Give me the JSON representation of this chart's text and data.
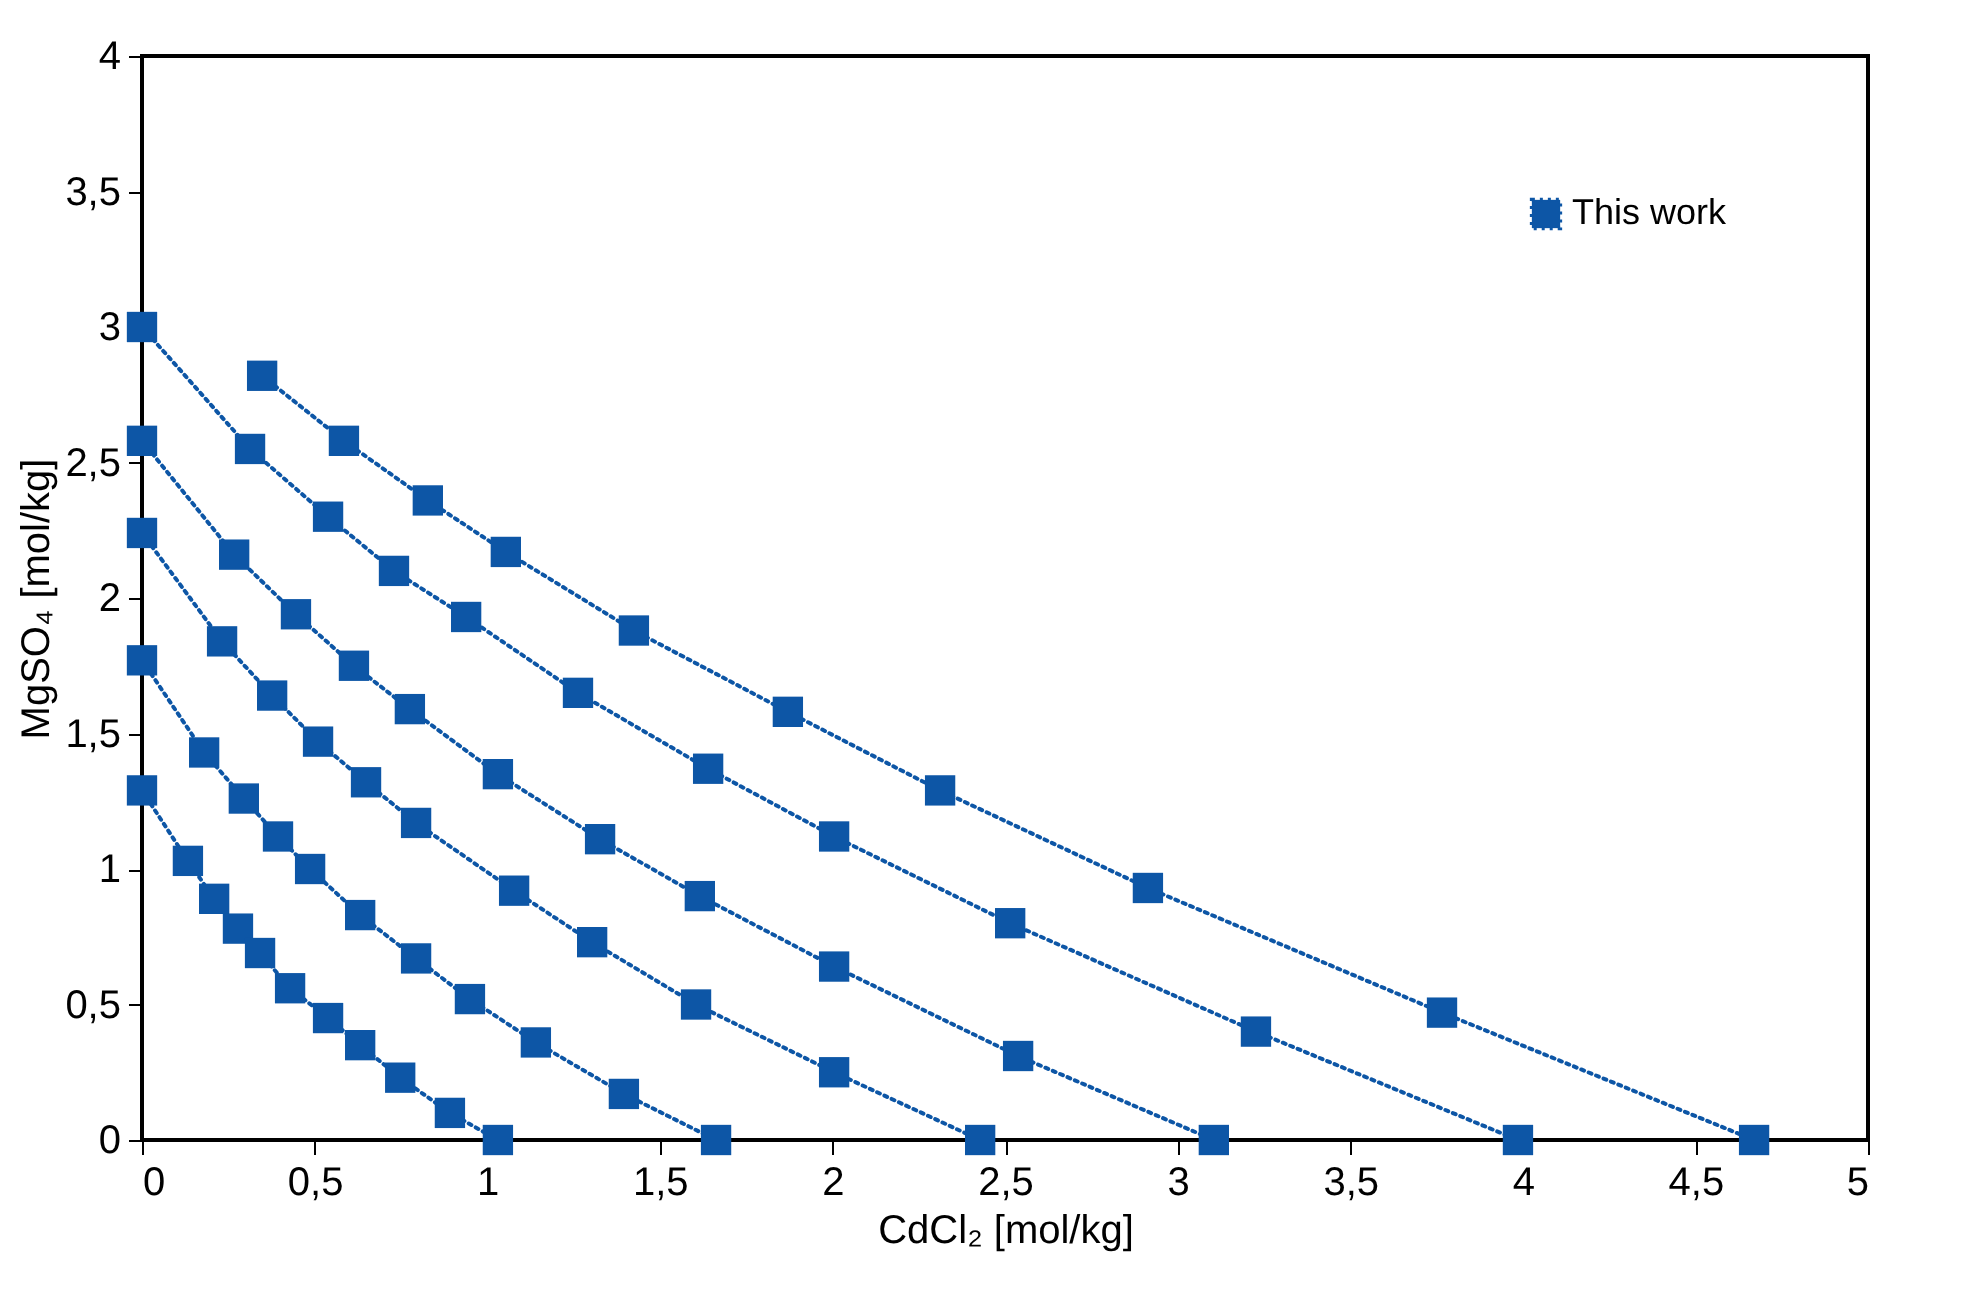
{
  "chart_data": {
    "type": "line",
    "xlabel": "CdCl₂ [mol/kg]",
    "ylabel": "MgSO₄ [mol/kg]",
    "xlim": [
      0,
      5
    ],
    "ylim": [
      0,
      4
    ],
    "xticks": [
      0,
      {
        "value": 0.5,
        "label": "0,5"
      },
      1,
      {
        "value": 1.5,
        "label": "1,5"
      },
      2,
      {
        "value": 2.5,
        "label": "2,5"
      },
      3,
      {
        "value": 3.5,
        "label": "3,5"
      },
      4,
      {
        "value": 4.5,
        "label": "4,5"
      },
      5
    ],
    "yticks": [
      0,
      {
        "value": 0.5,
        "label": "0,5"
      },
      1,
      {
        "value": 1.5,
        "label": "1,5"
      },
      2,
      {
        "value": 2.5,
        "label": "2,5"
      },
      3,
      {
        "value": 3.5,
        "label": "3,5"
      },
      4
    ],
    "marker": "square",
    "line_style": "dotted",
    "legend": "top right",
    "grid": false,
    "series": [
      {
        "name": "This work",
        "color": "#0d56a6",
        "x": [
          0,
          0.133,
          0.209,
          0.278,
          0.342,
          0.429,
          0.539,
          0.632,
          0.748,
          0.892,
          1.031
        ],
        "values": [
          1.29,
          1.03,
          0.89,
          0.78,
          0.69,
          0.56,
          0.45,
          0.35,
          0.23,
          0.1,
          0
        ]
      },
      {
        "color": "#0d56a6",
        "x": [
          0,
          0.18,
          0.295,
          0.394,
          0.487,
          0.632,
          0.794,
          0.95,
          1.141,
          1.396,
          1.663
        ],
        "values": [
          1.77,
          1.43,
          1.26,
          1.12,
          1.0,
          0.83,
          0.67,
          0.52,
          0.36,
          0.17,
          0
        ]
      },
      {
        "color": "#0d56a6",
        "x": [
          0,
          0.232,
          0.377,
          0.51,
          0.649,
          0.794,
          1.078,
          1.304,
          1.605,
          2.005,
          2.428
        ],
        "values": [
          2.24,
          1.84,
          1.64,
          1.47,
          1.32,
          1.17,
          0.92,
          0.73,
          0.5,
          0.25,
          0
        ]
      },
      {
        "color": "#0d56a6",
        "x": [
          0,
          0.267,
          0.446,
          0.614,
          0.776,
          1.031,
          1.327,
          1.616,
          2.005,
          2.538,
          3.105
        ],
        "values": [
          2.58,
          2.16,
          1.94,
          1.75,
          1.59,
          1.35,
          1.11,
          0.9,
          0.64,
          0.31,
          0
        ]
      },
      {
        "color": "#0d56a6",
        "x": [
          0,
          0.313,
          0.539,
          0.73,
          0.939,
          1.263,
          1.64,
          2.005,
          2.515,
          3.227,
          3.986
        ],
        "values": [
          3.0,
          2.55,
          2.3,
          2.1,
          1.93,
          1.65,
          1.37,
          1.12,
          0.8,
          0.4,
          0
        ]
      },
      {
        "color": "#0d56a6",
        "x": [
          0.348,
          0.585,
          0.828,
          1.054,
          1.425,
          1.871,
          2.312,
          2.914,
          3.766,
          4.67
        ],
        "values": [
          2.82,
          2.58,
          2.36,
          2.17,
          1.88,
          1.58,
          1.29,
          0.93,
          0.47,
          0
        ]
      }
    ]
  }
}
